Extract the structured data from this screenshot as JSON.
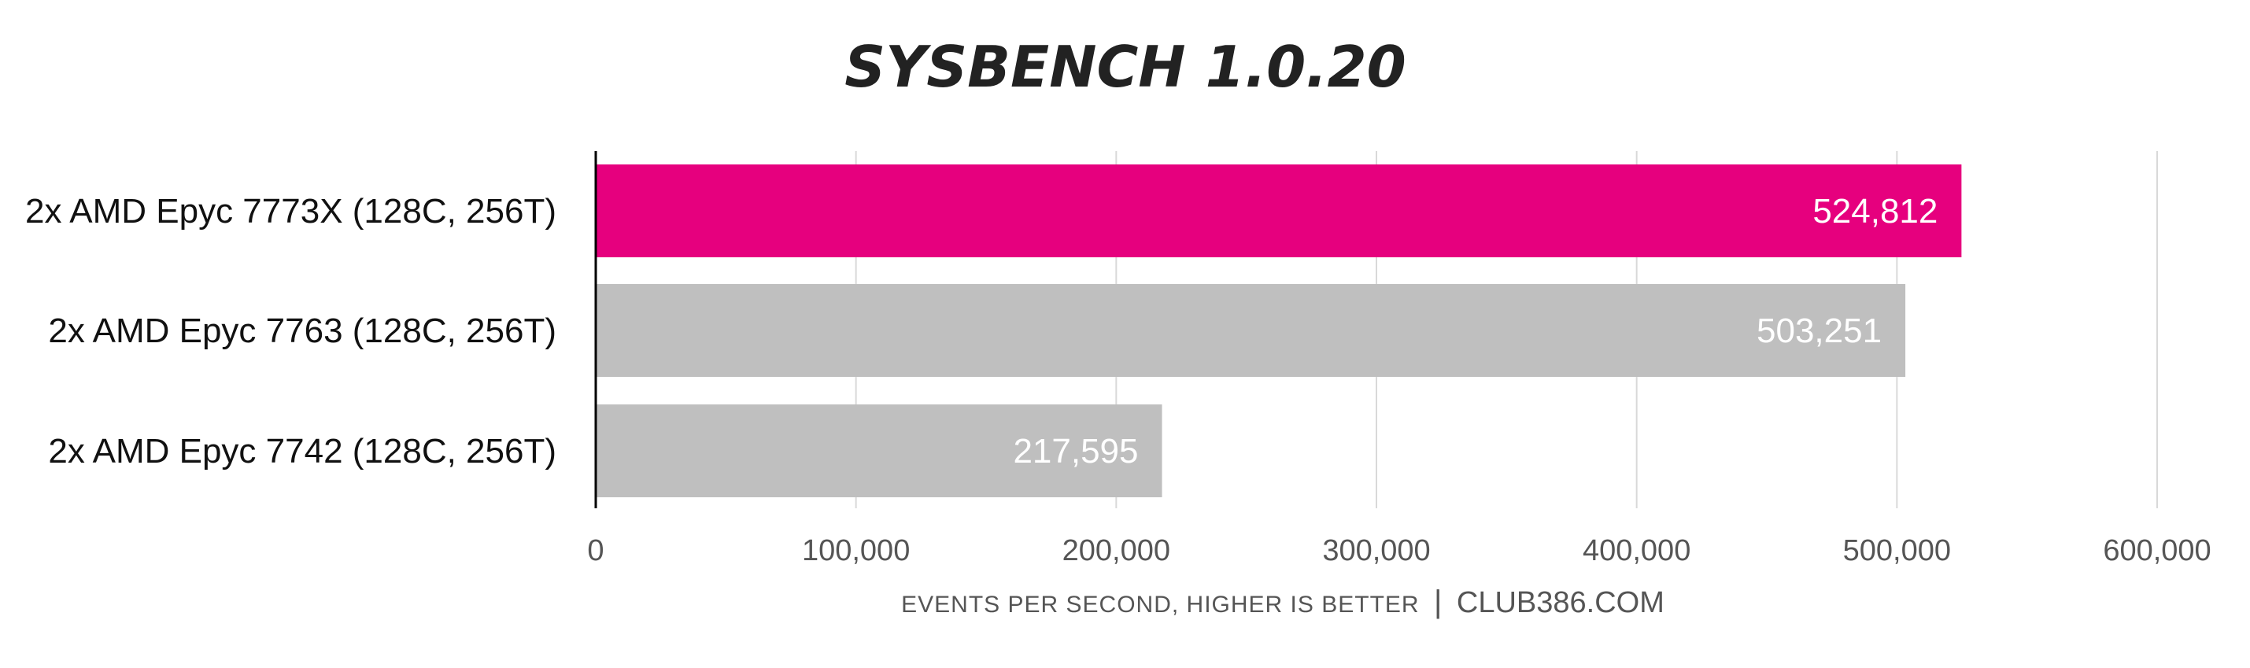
{
  "chart_data": {
    "type": "bar",
    "orientation": "horizontal",
    "title": "SYSBENCH 1.0.20",
    "categories": [
      "2x AMD Epyc 7773X (128C, 256T)",
      "2x AMD Epyc 7763 (128C, 256T)",
      "2x AMD Epyc 7742 (128C, 256T)"
    ],
    "values": [
      524812,
      503251,
      217595
    ],
    "value_labels": [
      "524,812",
      "503,251",
      "217,595"
    ],
    "bar_colors": [
      "#e6007e",
      "#bfbfbf",
      "#bfbfbf"
    ],
    "xlim": [
      0,
      600000
    ],
    "xticks": [
      0,
      100000,
      200000,
      300000,
      400000,
      500000,
      600000
    ],
    "xtick_labels": [
      "0",
      "100,000",
      "200,000",
      "300,000",
      "400,000",
      "500,000",
      "600,000"
    ],
    "xlabel": "EVENTS PER SECOND, HIGHER IS BETTER",
    "xlabel_separator": "|",
    "xlabel_source": "CLUB386.COM",
    "grid": "vertical",
    "colors": {
      "highlight": "#e6007e",
      "bar": "#bfbfbf",
      "grid": "#d9d9d9",
      "axis": "#000000",
      "title": "#222222"
    }
  }
}
